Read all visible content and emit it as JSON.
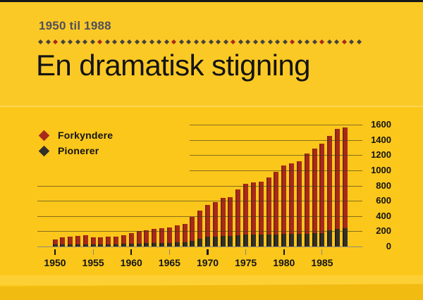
{
  "slide": {
    "period": "1950 til 1988",
    "title": "En dramatisk stigning"
  },
  "colors": {
    "background": "#FBC71B",
    "bottom_band": "#F2BB12",
    "publisher_red": "#A82A1B",
    "pioneer_dark": "#33302A",
    "period_text": "#51505B",
    "title_text": "#141414",
    "gridline": "rgba(62,55,30,0.62)",
    "baseline": "#918B77",
    "divider_dot": "#46433C",
    "divider_accent": "#A82A1B"
  },
  "divider": {
    "count": 44,
    "red_indices": [
      2,
      8,
      18,
      26,
      34,
      38,
      41
    ]
  },
  "legend": {
    "items": [
      {
        "label": "Forkyndere",
        "color": "#A82A1B",
        "icon": "diamond-icon"
      },
      {
        "label": "Pionerer",
        "color": "#33302A",
        "icon": "diamond-icon"
      }
    ]
  },
  "chart_data": {
    "type": "bar",
    "title": "En dramatisk stigning",
    "subtitle": "1950 til 1988",
    "stacking": "overlay",
    "grid": "horizontal",
    "legend_position": "top-left",
    "y_axis_side": "right",
    "ylim": [
      0,
      1600
    ],
    "yticks": [
      0,
      200,
      400,
      600,
      800,
      1000,
      1200,
      1400,
      1600
    ],
    "xticks": [
      1950,
      1955,
      1960,
      1965,
      1970,
      1975,
      1980,
      1985
    ],
    "categories": [
      1950,
      1951,
      1952,
      1953,
      1954,
      1955,
      1956,
      1957,
      1958,
      1959,
      1960,
      1961,
      1962,
      1963,
      1964,
      1965,
      1966,
      1967,
      1968,
      1969,
      1970,
      1971,
      1972,
      1973,
      1974,
      1975,
      1976,
      1977,
      1978,
      1979,
      1980,
      1981,
      1982,
      1983,
      1984,
      1985,
      1986,
      1987,
      1988
    ],
    "series": [
      {
        "name": "Forkyndere",
        "color": "#A82A1B",
        "values": [
          90,
          120,
          130,
          135,
          145,
          120,
          120,
          130,
          130,
          145,
          175,
          200,
          210,
          230,
          240,
          250,
          275,
          300,
          390,
          470,
          550,
          580,
          640,
          650,
          750,
          820,
          840,
          850,
          905,
          980,
          1065,
          1090,
          1120,
          1220,
          1285,
          1355,
          1455,
          1545,
          1560
        ]
      },
      {
        "name": "Pionerer",
        "color": "#33302A",
        "values": [
          25,
          30,
          30,
          30,
          30,
          25,
          25,
          30,
          30,
          40,
          40,
          40,
          45,
          45,
          45,
          50,
          55,
          60,
          75,
          105,
          125,
          130,
          140,
          140,
          150,
          155,
          155,
          155,
          155,
          155,
          165,
          165,
          165,
          170,
          175,
          175,
          210,
          230,
          240
        ]
      }
    ]
  }
}
